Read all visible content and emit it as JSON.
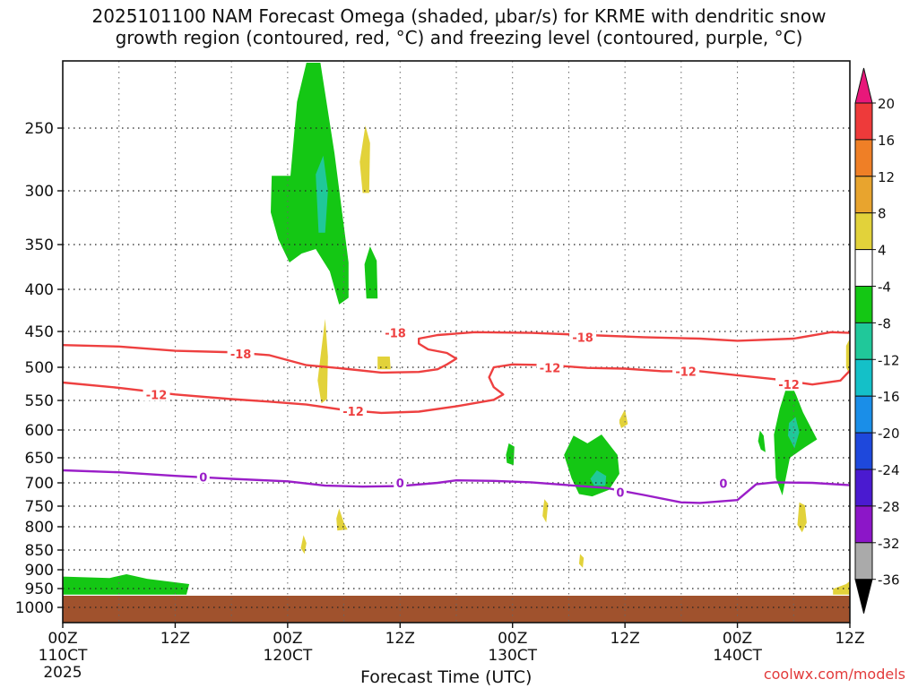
{
  "chart_data": {
    "type": "heatmap",
    "title": "2025101100 NAM Forecast Omega (shaded, μbar/s) for KRME with dendritic snow\ngrowth region (contoured, red, °C) and freezing level (contoured, purple, °C)",
    "xlabel": "Forecast Time (UTC)",
    "x_ticks": [
      {
        "hour": 0,
        "label": "00Z",
        "day": "110CT",
        "year": "2025"
      },
      {
        "hour": 12,
        "label": "12Z",
        "day": "",
        "year": ""
      },
      {
        "hour": 24,
        "label": "00Z",
        "day": "120CT",
        "year": ""
      },
      {
        "hour": 36,
        "label": "12Z",
        "day": "",
        "year": ""
      },
      {
        "hour": 48,
        "label": "00Z",
        "day": "130CT",
        "year": ""
      },
      {
        "hour": 60,
        "label": "12Z",
        "day": "",
        "year": ""
      },
      {
        "hour": 72,
        "label": "00Z",
        "day": "140CT",
        "year": ""
      },
      {
        "hour": 84,
        "label": "12Z",
        "day": "",
        "year": ""
      }
    ],
    "y_ticks": [
      250,
      300,
      350,
      400,
      450,
      500,
      550,
      600,
      650,
      700,
      750,
      800,
      850,
      900,
      950,
      1000
    ],
    "ylim": [
      200,
      1030
    ],
    "xlim": [
      0,
      84
    ],
    "colorbar": {
      "labels": [
        "20",
        "16",
        "12",
        "8",
        "4",
        "-4",
        "-8",
        "-12",
        "-16",
        "-20",
        "-24",
        "-28",
        "-32",
        "-36"
      ],
      "colors": [
        "#e8187a",
        "#ee3a3a",
        "#ef7f26",
        "#e8a42e",
        "#e2d23a",
        "#ffffff",
        "#14c714",
        "#20c89a",
        "#14c0c8",
        "#1a8ee8",
        "#1e48dc",
        "#4a1ad0",
        "#8c16c8",
        "#aaaaaa",
        "#000000"
      ]
    },
    "surface_color": "#a0522d",
    "contours": [
      {
        "label": "-18",
        "color": "#ee4040",
        "points": [
          [
            0,
            469
          ],
          [
            6,
            471
          ],
          [
            12,
            477
          ],
          [
            18,
            479
          ],
          [
            22,
            483
          ],
          [
            26,
            497
          ],
          [
            30,
            502
          ],
          [
            34,
            508
          ],
          [
            38,
            507
          ],
          [
            40,
            503
          ],
          [
            41,
            496
          ],
          [
            42,
            488
          ],
          [
            41,
            480
          ],
          [
            39,
            475
          ],
          [
            38,
            467
          ],
          [
            38,
            460
          ],
          [
            40,
            455
          ],
          [
            44,
            451
          ],
          [
            50,
            452
          ],
          [
            56,
            455
          ],
          [
            62,
            458
          ],
          [
            68,
            460
          ],
          [
            72,
            463
          ],
          [
            78,
            460
          ],
          [
            82,
            451
          ],
          [
            84,
            452
          ]
        ]
      },
      {
        "label": "-12",
        "color": "#ee4040",
        "points": [
          [
            0,
            523
          ],
          [
            6,
            531
          ],
          [
            12,
            541
          ],
          [
            18,
            548
          ],
          [
            22,
            552
          ],
          [
            26,
            557
          ],
          [
            30,
            566
          ],
          [
            34,
            571
          ],
          [
            38,
            569
          ],
          [
            42,
            560
          ],
          [
            46,
            549
          ],
          [
            47,
            541
          ],
          [
            46,
            530
          ],
          [
            45.5,
            515
          ],
          [
            46,
            500
          ],
          [
            48,
            496
          ],
          [
            52,
            497
          ],
          [
            56,
            501
          ],
          [
            60,
            502
          ],
          [
            64,
            506
          ],
          [
            68,
            506
          ],
          [
            72,
            512
          ],
          [
            76,
            518
          ],
          [
            80,
            526
          ],
          [
            83,
            520
          ],
          [
            84,
            505
          ]
        ]
      },
      {
        "label": "0",
        "color": "#9a1ec8",
        "points": [
          [
            0,
            675
          ],
          [
            6,
            679
          ],
          [
            12,
            686
          ],
          [
            18,
            692
          ],
          [
            24,
            697
          ],
          [
            28,
            706
          ],
          [
            32,
            708
          ],
          [
            36,
            707
          ],
          [
            40,
            700
          ],
          [
            42,
            695
          ],
          [
            46,
            696
          ],
          [
            50,
            699
          ],
          [
            54,
            705
          ],
          [
            58,
            711
          ],
          [
            62,
            726
          ],
          [
            66,
            742
          ],
          [
            68,
            743
          ],
          [
            70,
            740
          ],
          [
            72,
            737
          ],
          [
            74,
            703
          ],
          [
            76,
            699
          ],
          [
            80,
            700
          ],
          [
            84,
            705
          ]
        ]
      }
    ],
    "omega_regions": [
      {
        "level": -4,
        "points": [
          [
            24.3,
            288
          ],
          [
            25,
            230
          ],
          [
            26,
            200
          ],
          [
            27.5,
            200
          ],
          [
            29,
            270
          ],
          [
            30.5,
            370
          ],
          [
            30.5,
            410
          ],
          [
            29.5,
            418
          ],
          [
            28.5,
            380
          ],
          [
            27,
            355
          ],
          [
            25.5,
            360
          ],
          [
            24.2,
            370
          ],
          [
            23,
            345
          ],
          [
            22.2,
            320
          ],
          [
            22.3,
            288
          ]
        ]
      },
      {
        "level": -4,
        "points": [
          [
            32.2,
            372
          ],
          [
            32.8,
            352
          ],
          [
            33.5,
            368
          ],
          [
            33.6,
            411
          ],
          [
            32.4,
            411
          ]
        ]
      },
      {
        "level": -4,
        "points": [
          [
            0,
            918
          ],
          [
            5,
            922
          ],
          [
            6.8,
            912
          ],
          [
            9,
            924
          ],
          [
            13.5,
            938
          ],
          [
            13.2,
            966
          ],
          [
            0,
            966
          ]
        ]
      },
      {
        "level": -4,
        "points": [
          [
            53.5,
            645
          ],
          [
            54.5,
            610
          ],
          [
            56,
            624
          ],
          [
            57.5,
            608
          ],
          [
            59.2,
            645
          ],
          [
            59.4,
            682
          ],
          [
            58.3,
            715
          ],
          [
            56.5,
            729
          ],
          [
            55.1,
            724
          ],
          [
            54.3,
            691
          ]
        ]
      },
      {
        "level": -4,
        "points": [
          [
            76.5,
            565
          ],
          [
            77.5,
            518
          ],
          [
            78.3,
            543
          ],
          [
            79,
            570
          ],
          [
            80.5,
            617
          ],
          [
            79.2,
            631
          ],
          [
            77.6,
            650
          ],
          [
            76.8,
            727
          ],
          [
            76.1,
            690
          ],
          [
            75.9,
            608
          ]
        ]
      },
      {
        "level": -4,
        "points": [
          [
            47.6,
            624
          ],
          [
            48.2,
            630
          ],
          [
            48.1,
            665
          ],
          [
            47.4,
            660
          ],
          [
            47.3,
            645
          ]
        ]
      },
      {
        "level": -4,
        "points": [
          [
            74.4,
            601
          ],
          [
            74.8,
            610
          ],
          [
            75,
            640
          ],
          [
            74.5,
            635
          ],
          [
            74.2,
            620
          ]
        ]
      },
      {
        "level": -8,
        "points": [
          [
            27,
            287
          ],
          [
            27.8,
            272
          ],
          [
            28.3,
            300
          ],
          [
            28,
            339
          ],
          [
            27.3,
            339
          ]
        ]
      },
      {
        "level": -8,
        "points": [
          [
            56.3,
            692
          ],
          [
            57,
            675
          ],
          [
            58,
            686
          ],
          [
            57.9,
            706
          ],
          [
            56.7,
            706
          ]
        ]
      },
      {
        "level": -8,
        "points": [
          [
            77.5,
            588
          ],
          [
            78.2,
            578
          ],
          [
            78.6,
            604
          ],
          [
            78.1,
            633
          ],
          [
            77.4,
            610
          ]
        ]
      },
      {
        "level": 4,
        "points": [
          [
            31.7,
            277
          ],
          [
            32.3,
            248
          ],
          [
            32.8,
            262
          ],
          [
            32.7,
            302
          ],
          [
            32,
            302
          ]
        ]
      },
      {
        "level": 4,
        "points": [
          [
            27.6,
            475
          ],
          [
            28,
            435
          ],
          [
            28.3,
            485
          ],
          [
            28.2,
            548
          ],
          [
            27.6,
            555
          ],
          [
            27.2,
            520
          ]
        ]
      },
      {
        "level": 4,
        "points": [
          [
            33.6,
            485
          ],
          [
            34.9,
            485
          ],
          [
            35,
            503
          ],
          [
            33.6,
            503
          ]
        ]
      },
      {
        "level": 4,
        "points": [
          [
            29.5,
            756
          ],
          [
            30,
            790
          ],
          [
            30.4,
            806
          ],
          [
            29.3,
            808
          ],
          [
            29.2,
            780
          ]
        ]
      },
      {
        "level": 4,
        "points": [
          [
            25.7,
            818
          ],
          [
            26,
            835
          ],
          [
            25.8,
            860
          ],
          [
            25.4,
            846
          ]
        ]
      },
      {
        "level": 4,
        "points": [
          [
            59.4,
            583
          ],
          [
            60,
            565
          ],
          [
            60.3,
            590
          ],
          [
            59.6,
            597
          ],
          [
            59.4,
            588
          ]
        ]
      },
      {
        "level": 4,
        "points": [
          [
            51.4,
            735
          ],
          [
            51.8,
            745
          ],
          [
            51.6,
            790
          ],
          [
            51.2,
            774
          ],
          [
            51.3,
            750
          ]
        ]
      },
      {
        "level": 4,
        "points": [
          [
            55.2,
            860
          ],
          [
            55.6,
            870
          ],
          [
            55.5,
            895
          ],
          [
            55.1,
            885
          ]
        ]
      },
      {
        "level": 4,
        "points": [
          [
            78.6,
            742
          ],
          [
            79.2,
            748
          ],
          [
            79.4,
            790
          ],
          [
            78.9,
            812
          ],
          [
            78.4,
            795
          ]
        ]
      },
      {
        "level": 4,
        "points": [
          [
            83.6,
            470
          ],
          [
            84,
            460
          ],
          [
            84,
            512
          ],
          [
            83.6,
            500
          ]
        ]
      },
      {
        "level": 4,
        "points": [
          [
            82.2,
            951
          ],
          [
            83.6,
            938
          ],
          [
            84,
            930
          ],
          [
            84,
            966
          ],
          [
            82.2,
            966
          ]
        ]
      }
    ]
  },
  "credit": "coolwx.com/models"
}
